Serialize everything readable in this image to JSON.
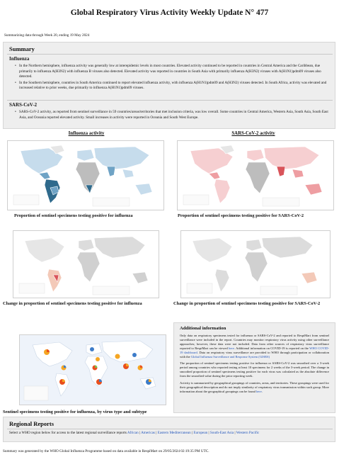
{
  "header": {
    "title": "Global Respiratory Virus Activity Weekly Update N° 477",
    "subline": "Summarizing data through Week 20, ending 19 May 2024"
  },
  "summary": {
    "heading": "Summary",
    "influenza_heading": "Influenza",
    "influenza_bullets": [
      "In the Northern hemisphere, influenza activity was generally low at interepidemic levels in most countries. Elevated activity continued to be reported in countries in Central America and the Caribbean, due primarily to influenza A(H3N2) with influenza B viruses also detected. Elevated activity was reported in countries in South Asia with primarily influenza A(H3N2) viruses with A(H1N1)pdm09 viruses also detected.",
      "In the Southern hemisphere, countries in South America continued to report elevated influenza activity, with influenza A(H1N1)pdm09 and A(H3N2) viruses detected. In South Africa, activity was elevated and increased relative to prior weeks, due primarily to influenza A(H1N1)pdm09 viruses."
    ],
    "sars_heading": "SARS-CoV-2",
    "sars_bullets": [
      "SARS-CoV-2 activity, as reported from sentinel surveillance in 59 countries/areas/territories that met inclusion criteria, was low overall. Some countries in Central America, Western Asia, South Asia, South East Asia, and Oceania reported elevated activity. Small increases in activity were reported in Oceania and South West Europe."
    ]
  },
  "maps": {
    "influenza_activity_title": "Influenza activity",
    "sars_activity_title": "SARS-CoV-2 activity",
    "cap_flu_prop": "Proportion of sentinel specimens testing positive for influenza",
    "cap_sars_prop": "Proportion of sentinel specimens testing positive for SARS-CoV-2",
    "cap_flu_change": "Change in proportion of sentinel specimens testing positive for influenza",
    "cap_sars_change": "Change in proportion of sentinel specimens testing positive for SARS-CoV-2",
    "cap_subtype": "Sentinel specimens testing positive for influenza, by virus type and subtype"
  },
  "colors": {
    "flu_dark": "#2f6a8c",
    "flu_mid": "#6fa3c5",
    "flu_light": "#c6dcec",
    "sars_dark": "#d9545a",
    "sars_mid": "#ee9ea2",
    "sars_light": "#f6cfd1",
    "gray": "#bdbdbd",
    "link": "#2255bb"
  },
  "info": {
    "heading": "Additional information",
    "p1_text": "Only data on respiratory specimens tested for influenza or SARS-CoV-2 and reported to RespiMart from sentinel surveillance were included in the report. Countries may monitor respiratory virus activity using other surveillance approaches; however, these data were not included. Data from other sources of respiratory virus surveillance reported to RespiMart can be viewed",
    "p1_link1": "here",
    "p1_text2": ". Additional information on COVID-19 is reported on the",
    "p1_link2": "WHO COVID-19 dashboard",
    "p1_text3": ". Data on respiratory virus surveillance are provided to WHO through participation or collaboration with the",
    "p1_link3": "Global Influenza Surveillance and Response System (GISRS)",
    "p2": "The proportion of sentinel specimens testing positive for influenza or SARS-CoV-2 was smoothed over a 3-week period among countries who reported testing at least 10 specimens for 2 weeks of the 3-week period. The change in smoothed proportion of sentinel specimens testing positive for each virus was calculated as the absolute difference from the smoothed value during the prior reporting week.",
    "p3_text": "Activity is summarized by geographical groupings of countries, areas, and territories. These groupings were used for their geographical description and do not imply similarity of respiratory virus transmission within such group. More information about the geographical groupings can be found",
    "p3_link": "here"
  },
  "regional": {
    "heading": "Regional Reports",
    "intro": "Select a WHO region below for access to the latest regional surveillance reports",
    "regions": [
      "African",
      "Americas",
      "Eastern Mediterranean",
      "European",
      "South-East Asia",
      "Western Pacific"
    ]
  },
  "footer": "Summary was generated by the WHO Global Influenza Programme based on data available in RespiMart on 29/05/2024 02:19:35 PM UTC."
}
